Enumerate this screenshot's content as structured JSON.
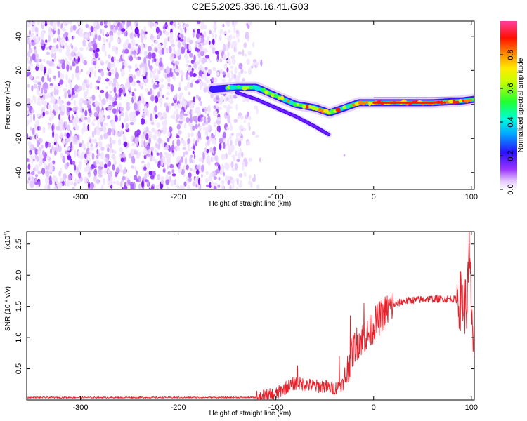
{
  "chart_data": [
    {
      "type": "heatmap",
      "title": "C2E5.2025.336.16.41.G03",
      "xlabel": "Height of straight line (km)",
      "ylabel": "Frequency (Hz)",
      "xlim": [
        -355,
        103
      ],
      "ylim": [
        -50,
        49
      ],
      "xticks": [
        -300,
        -200,
        -100,
        0,
        100
      ],
      "xtick_labels": [
        "-300",
        "-200",
        "-100",
        "0",
        "100"
      ],
      "yticks": [
        -40,
        -20,
        0,
        20,
        40
      ],
      "ytick_labels": [
        "-40",
        "-20",
        "0",
        "20",
        "40"
      ],
      "noise_region_km": [
        -355,
        -120
      ],
      "signal_ridge": {
        "x": [
          -163,
          -140,
          -120,
          -100,
          -80,
          -60,
          -45,
          -30,
          -15,
          0,
          30,
          60,
          90,
          103
        ],
        "y": [
          9,
          10,
          10,
          5,
          0,
          -2,
          -5,
          -2,
          1,
          1,
          1,
          1,
          2,
          3
        ]
      },
      "lower_branch": {
        "x": [
          -140,
          -120,
          -100,
          -80,
          -60,
          -45
        ],
        "y": [
          7,
          3,
          -2,
          -7,
          -13,
          -18
        ]
      },
      "colorbar": {
        "label": "Normalized spectral amplitude",
        "ticks": [
          "0.0",
          "0.2",
          "0.4",
          "0.6",
          "0.8"
        ],
        "range": [
          0,
          1
        ]
      }
    },
    {
      "type": "line",
      "title": "",
      "xlabel": "Height of straight line (km)",
      "ylabel": "SNR (10 * v/v)",
      "y_multiplier": "(x10",
      "y_exponent": "4",
      "xlim": [
        -355,
        103
      ],
      "ylim": [
        0,
        2.7
      ],
      "xticks": [
        -300,
        -200,
        -100,
        0,
        100
      ],
      "xtick_labels": [
        "-300",
        "-200",
        "-100",
        "0",
        "100"
      ],
      "yticks": [
        0.5,
        1.0,
        1.5,
        2.0,
        2.5
      ],
      "ytick_labels": [
        "0.5",
        "1.0",
        "1.5",
        "2.0",
        "2.5"
      ],
      "series": [
        {
          "name": "SNR",
          "color": "#e8202a",
          "envelope": {
            "x": [
              -355,
              -120,
              -100,
              -90,
              -80,
              -70,
              -60,
              -50,
              -40,
              -30,
              -25,
              -20,
              -15,
              -10,
              -5,
              0,
              10,
              20,
              30,
              40,
              60,
              80,
              90,
              95,
              98,
              100,
              103
            ],
            "y": [
              0.04,
              0.04,
              0.09,
              0.2,
              0.27,
              0.25,
              0.22,
              0.22,
              0.18,
              0.28,
              0.6,
              0.85,
              0.95,
              1.0,
              1.05,
              1.2,
              1.38,
              1.52,
              1.58,
              1.6,
              1.62,
              1.62,
              1.6,
              1.5,
              2.2,
              1.6,
              0.5
            ]
          },
          "peaks": [
            {
              "x": -78,
              "y": 0.55
            },
            {
              "x": -35,
              "y": 0.7
            },
            {
              "x": -24,
              "y": 1.35
            },
            {
              "x": -10,
              "y": 1.55
            },
            {
              "x": 98,
              "y": 2.7
            }
          ]
        }
      ]
    }
  ]
}
